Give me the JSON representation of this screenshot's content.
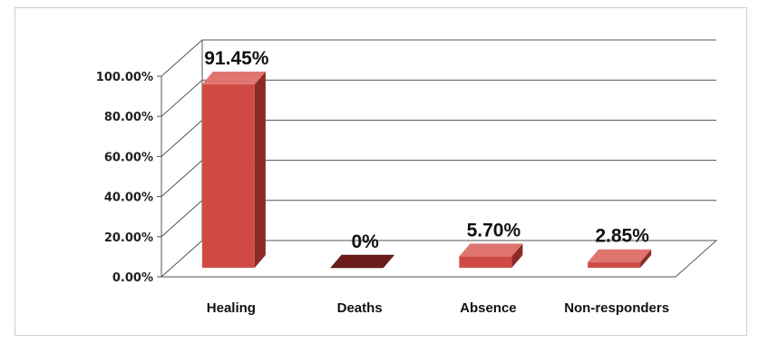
{
  "chart_data": {
    "type": "bar",
    "categories": [
      "Healing",
      "Deaths",
      "Absence",
      "Non-responders"
    ],
    "values": [
      91.45,
      0,
      5.7,
      2.85
    ],
    "data_labels": [
      "91.45%",
      "0%",
      "5.70%",
      "2.85%"
    ],
    "yticks": [
      "0.00%",
      "20.00%",
      "40.00%",
      "60.00%",
      "80.00%",
      "100.00%"
    ],
    "ylim": [
      0,
      100
    ],
    "grid": true,
    "legend": "none",
    "style": "3d",
    "colors": {
      "bar_front": "#d04a45",
      "bar_side": "#8c2a27",
      "bar_top": "#e07570",
      "zero_bar": "#6b1c1a"
    }
  }
}
